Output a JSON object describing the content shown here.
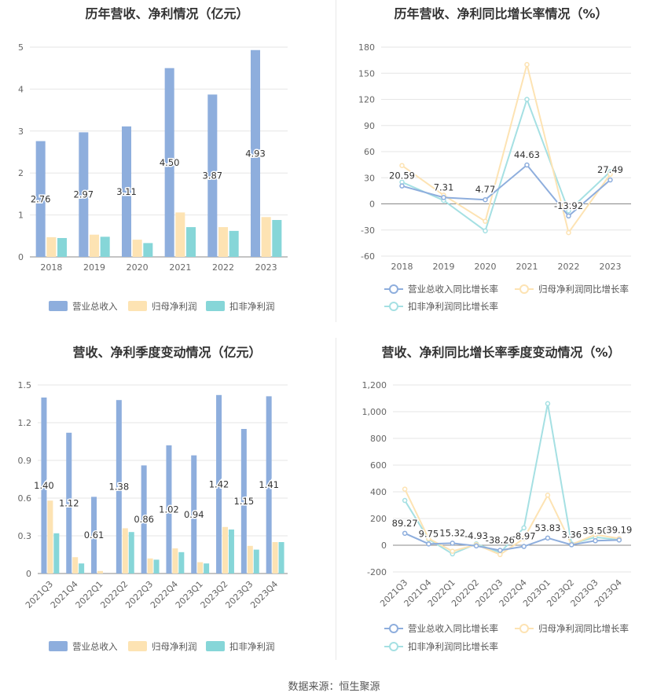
{
  "source_text": "数据来源：恒生聚源",
  "chart_data": [
    {
      "id": "annual_values",
      "type": "bar",
      "title": "历年营收、净利情况（亿元）",
      "categories": [
        "2018",
        "2019",
        "2020",
        "2021",
        "2022",
        "2023"
      ],
      "ylim": [
        0,
        5
      ],
      "yticks": [
        "0",
        "1",
        "2",
        "3",
        "4",
        "5"
      ],
      "series": [
        {
          "name": "营业总收入",
          "color": "#8eaedd",
          "values": [
            2.76,
            2.97,
            3.11,
            4.5,
            3.87,
            4.93
          ],
          "labels": [
            "2.76",
            "2.97",
            "3.11",
            "4.50",
            "3.87",
            "4.93"
          ]
        },
        {
          "name": "归母净利润",
          "color": "#fde3b3",
          "values": [
            0.47,
            0.53,
            0.41,
            1.06,
            0.71,
            0.95
          ]
        },
        {
          "name": "扣非净利润",
          "color": "#86d6d8",
          "values": [
            0.45,
            0.48,
            0.33,
            0.71,
            0.62,
            0.88
          ]
        }
      ],
      "legend_position": "bottom",
      "grid": true
    },
    {
      "id": "annual_growth",
      "type": "line",
      "title": "历年营收、净利同比增长率情况（%）",
      "categories": [
        "2018",
        "2019",
        "2020",
        "2021",
        "2022",
        "2023"
      ],
      "ylim": [
        -60,
        180
      ],
      "yticks": [
        "-60",
        "-30",
        "0",
        "30",
        "60",
        "90",
        "120",
        "150",
        "180"
      ],
      "series": [
        {
          "name": "营业总收入同比增长率",
          "color": "#8eaedd",
          "values": [
            20.59,
            7.31,
            4.77,
            44.63,
            -13.92,
            27.49
          ],
          "labels": [
            "20.59",
            "7.31",
            "4.77",
            "44.63",
            "-13.92",
            "27.49"
          ]
        },
        {
          "name": "归母净利润同比增长率",
          "color": "#fde3b3",
          "values": [
            44,
            10,
            -20,
            160,
            -33,
            34
          ]
        },
        {
          "name": "扣非净利润同比增长率",
          "color": "#a5e0e3",
          "values": [
            25,
            4,
            -31,
            120,
            -8,
            37
          ]
        }
      ],
      "legend_position": "bottom",
      "grid": true
    },
    {
      "id": "quarterly_values",
      "type": "bar",
      "title": "营收、净利季度变动情况（亿元）",
      "categories": [
        "2021Q3",
        "2021Q4",
        "2022Q1",
        "2022Q2",
        "2022Q3",
        "2022Q4",
        "2023Q1",
        "2023Q2",
        "2023Q3",
        "2023Q4"
      ],
      "ylim": [
        0,
        1.5
      ],
      "yticks": [
        "0",
        "0.3",
        "0.6",
        "0.9",
        "1.2",
        "1.5"
      ],
      "series": [
        {
          "name": "营业总收入",
          "color": "#8eaedd",
          "values": [
            1.4,
            1.12,
            0.61,
            1.38,
            0.86,
            1.02,
            0.94,
            1.42,
            1.15,
            1.41
          ],
          "labels": [
            "1.40",
            "1.12",
            "0.61",
            "1.38",
            "0.86",
            "1.02",
            "0.94",
            "1.42",
            "1.15",
            "1.41"
          ]
        },
        {
          "name": "归母净利润",
          "color": "#fde3b3",
          "values": [
            0.58,
            0.13,
            0.02,
            0.36,
            0.12,
            0.2,
            0.09,
            0.37,
            0.22,
            0.25
          ]
        },
        {
          "name": "扣非净利润",
          "color": "#86d6d8",
          "values": [
            0.32,
            0.08,
            0.0,
            0.33,
            0.11,
            0.17,
            0.08,
            0.35,
            0.19,
            0.25
          ]
        }
      ],
      "legend_position": "bottom",
      "grid": true
    },
    {
      "id": "quarterly_growth",
      "type": "line",
      "title": "营收、净利同比增长率季度变动情况（%）",
      "categories": [
        "2021Q3",
        "2021Q4",
        "2022Q1",
        "2022Q2",
        "2022Q3",
        "2022Q4",
        "2023Q1",
        "2023Q2",
        "2023Q3",
        "2023Q4"
      ],
      "ylim": [
        -200,
        1200
      ],
      "yticks": [
        "-200",
        "0",
        "200",
        "400",
        "600",
        "800",
        "1,000",
        "1,200"
      ],
      "series": [
        {
          "name": "营业总收入同比增长率",
          "color": "#8eaedd",
          "values": [
            89.27,
            9.75,
            15.32,
            -4.93,
            -38.26,
            -8.97,
            53.83,
            3.36,
            33.5,
            39.19
          ],
          "labels": [
            "89.27",
            "9.75",
            "15.32",
            "-4.93",
            "-38.26",
            "-8.97",
            "53.83",
            "3.36",
            "33.50",
            "39.19"
          ]
        },
        {
          "name": "归母净利润同比增长率",
          "color": "#fde3b3",
          "values": [
            420,
            50,
            -45,
            5,
            -70,
            50,
            375,
            5,
            80,
            50
          ]
        },
        {
          "name": "扣非净利润同比增长率",
          "color": "#a5e0e3",
          "values": [
            335,
            45,
            -65,
            10,
            -55,
            130,
            1060,
            10,
            60,
            40
          ]
        }
      ],
      "legend_position": "bottom",
      "grid": true
    }
  ]
}
